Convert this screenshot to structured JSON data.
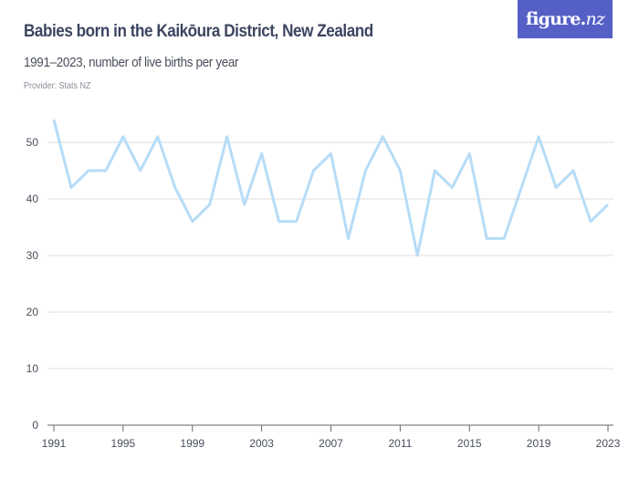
{
  "header": {
    "title": "Babies born in the Kaikōura District, New Zealand",
    "subtitle": "1991–2023, number of live births per year",
    "provider": "Provider: Stats NZ"
  },
  "logo": {
    "text_main": "figure.",
    "text_nz": "nz",
    "color": "#5560c6"
  },
  "colors": {
    "line": "#b6dcf7",
    "grid": "#dddddd",
    "axis": "#666666"
  },
  "chart_data": {
    "type": "line",
    "title": "Babies born in the Kaikōura District, New Zealand",
    "subtitle": "1991–2023, number of live births per year",
    "xlabel": "",
    "ylabel": "",
    "ylim": [
      0,
      55
    ],
    "yticks": [
      0,
      10,
      20,
      30,
      40,
      50
    ],
    "xticks": [
      1991,
      1995,
      1999,
      2003,
      2007,
      2011,
      2015,
      2019,
      2023
    ],
    "grid": true,
    "legend": null,
    "x": [
      1991,
      1992,
      1993,
      1994,
      1995,
      1996,
      1997,
      1998,
      1999,
      2000,
      2001,
      2002,
      2003,
      2004,
      2005,
      2006,
      2007,
      2008,
      2009,
      2010,
      2011,
      2012,
      2013,
      2014,
      2015,
      2016,
      2017,
      2018,
      2019,
      2020,
      2021,
      2022,
      2023
    ],
    "series": [
      {
        "name": "Live births",
        "values": [
          54,
          42,
          45,
          45,
          51,
          45,
          51,
          42,
          36,
          39,
          51,
          39,
          48,
          36,
          36,
          45,
          48,
          33,
          45,
          51,
          45,
          30,
          45,
          42,
          48,
          33,
          33,
          42,
          51,
          42,
          45,
          36,
          39
        ]
      }
    ]
  }
}
